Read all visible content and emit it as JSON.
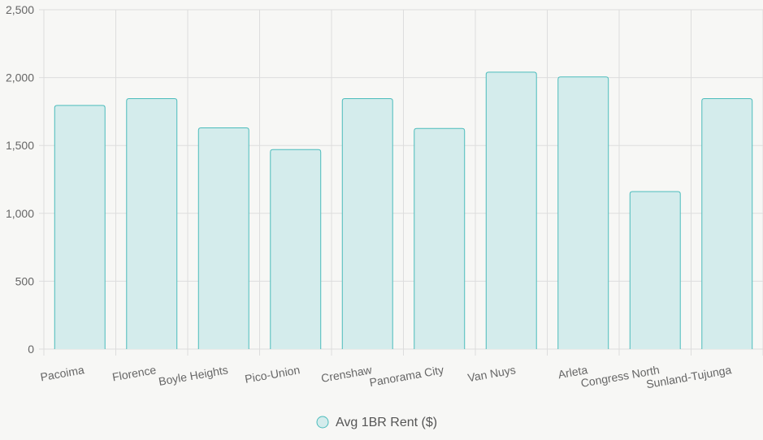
{
  "chart_data": {
    "type": "bar",
    "categories": [
      "Pacoima",
      "Florence",
      "Boyle Heights",
      "Pico-Union",
      "Crenshaw",
      "Panorama City",
      "Van Nuys",
      "Arleta",
      "Congress North",
      "Sunland-Tujunga"
    ],
    "series": [
      {
        "name": "Avg 1BR Rent ($)",
        "values": [
          1795,
          1845,
          1630,
          1470,
          1845,
          1625,
          2040,
          2005,
          1160,
          1845
        ]
      }
    ],
    "ylim": [
      0,
      2500
    ],
    "yticks": [
      "0",
      "500",
      "1,000",
      "1,500",
      "2,000",
      "2,500"
    ],
    "ytick_values": [
      0,
      500,
      1000,
      1500,
      2000,
      2500
    ],
    "grid": true,
    "legend_position": "bottom",
    "colors": {
      "bar_fill": "#d4ecec",
      "bar_stroke": "#4bbcbc",
      "grid": "#dddddd",
      "axis_text": "#666666",
      "background": "#f7f7f5"
    }
  }
}
